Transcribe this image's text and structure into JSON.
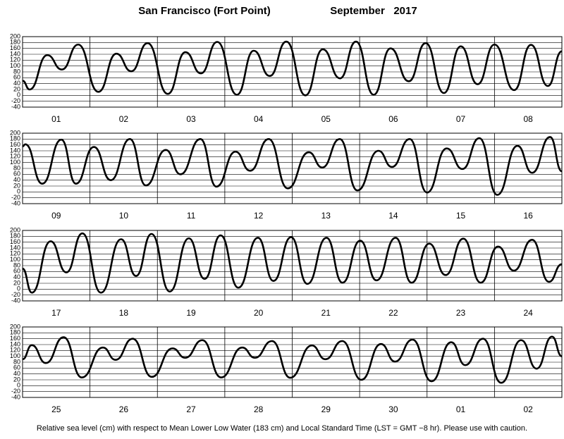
{
  "title": "San Francisco (Fort Point)",
  "period": "September   2017",
  "footnote": "Relative sea level (cm) with respect to Mean Lower Low Water (183 cm) and Local Standard Time (LST = GMT −8 hr). Please use with caution.",
  "chart_data": [
    {
      "type": "line",
      "categories": [
        "01",
        "02",
        "03",
        "04",
        "05",
        "06",
        "07",
        "08"
      ],
      "xlim": [
        0,
        192
      ],
      "ylim": [
        -40,
        200
      ],
      "yticks": [
        -40,
        -20,
        0,
        20,
        40,
        60,
        80,
        100,
        120,
        140,
        160,
        180,
        200
      ],
      "grid": true,
      "x": [
        0,
        2.5,
        8.8,
        14,
        19.8,
        27,
        33.4,
        38.7,
        44.5,
        51.7,
        58,
        63.5,
        69.3,
        76.3,
        82.3,
        88,
        93.9,
        100.7,
        106.9,
        113,
        118.7,
        125,
        131,
        137.5,
        143.5,
        150,
        156,
        162,
        168,
        175,
        181,
        187,
        192
      ],
      "series": [
        {
          "color": "#000000",
          "values": [
            50,
            20,
            137,
            88,
            173,
            12,
            142,
            82,
            178,
            5,
            147,
            75,
            182,
            2,
            152,
            66,
            183,
            0,
            157,
            58,
            183,
            2,
            160,
            48,
            178,
            8,
            167,
            38,
            173,
            18,
            172,
            32,
            150
          ]
        }
      ]
    },
    {
      "type": "line",
      "categories": [
        "09",
        "10",
        "11",
        "12",
        "13",
        "14",
        "15",
        "16"
      ],
      "xlim": [
        0,
        192
      ],
      "ylim": [
        -40,
        200
      ],
      "yticks": [
        -40,
        -20,
        0,
        20,
        40,
        60,
        80,
        100,
        120,
        140,
        160,
        180,
        200
      ],
      "grid": true,
      "x": [
        0,
        1,
        7,
        13.8,
        19,
        25.4,
        31.4,
        38.2,
        43.9,
        51,
        56.2,
        63.3,
        69,
        75.8,
        81,
        87.6,
        94.4,
        101.9,
        106.7,
        112.9,
        119.2,
        126.7,
        131.5,
        137.8,
        144,
        151,
        156.6,
        162.6,
        169,
        176.2,
        181.4,
        187.8,
        192
      ],
      "series": [
        {
          "color": "#000000",
          "values": [
            155,
            162,
            28,
            178,
            28,
            153,
            40,
            180,
            22,
            143,
            60,
            180,
            18,
            137,
            72,
            180,
            12,
            135,
            83,
            180,
            5,
            140,
            85,
            180,
            -2,
            148,
            78,
            183,
            -10,
            157,
            65,
            187,
            70
          ]
        }
      ]
    },
    {
      "type": "line",
      "categories": [
        "17",
        "18",
        "19",
        "20",
        "21",
        "22",
        "23",
        "24"
      ],
      "xlim": [
        0,
        192
      ],
      "ylim": [
        -40,
        200
      ],
      "yticks": [
        -40,
        -20,
        0,
        20,
        40,
        60,
        80,
        100,
        120,
        140,
        160,
        180,
        200
      ],
      "grid": true,
      "x": [
        0,
        3.3,
        10,
        15.6,
        21.3,
        27.9,
        35.1,
        40.4,
        45.9,
        52.4,
        59.2,
        64.8,
        70.5,
        76.8,
        83.8,
        89.3,
        95.6,
        101.4,
        108.2,
        113.9,
        120.2,
        126,
        132.8,
        138.5,
        144.8,
        150.6,
        156.9,
        163.1,
        169.3,
        174.9,
        181.4,
        187.4,
        192
      ],
      "series": [
        {
          "color": "#000000",
          "values": [
            70,
            -12,
            163,
            57,
            190,
            -12,
            170,
            45,
            188,
            -8,
            173,
            35,
            183,
            5,
            175,
            28,
            177,
            18,
            175,
            22,
            165,
            30,
            175,
            22,
            155,
            48,
            172,
            22,
            145,
            63,
            168,
            25,
            85
          ]
        }
      ]
    },
    {
      "type": "line",
      "categories": [
        "25",
        "26",
        "27",
        "28",
        "29",
        "30",
        "01",
        "02"
      ],
      "xlim": [
        0,
        192
      ],
      "ylim": [
        -40,
        200
      ],
      "yticks": [
        -40,
        -20,
        0,
        20,
        40,
        60,
        80,
        100,
        120,
        140,
        160,
        180,
        200
      ],
      "grid": true,
      "x": [
        0,
        3.3,
        8.3,
        14.6,
        21.1,
        28.6,
        33.1,
        39.2,
        46,
        53.4,
        57.9,
        64,
        70.7,
        78.2,
        82.7,
        88.8,
        95.3,
        103,
        107.8,
        113.8,
        120.6,
        127.6,
        132.6,
        138.8,
        145.6,
        152.6,
        157.6,
        163.9,
        170.4,
        177.5,
        183,
        188.5,
        192
      ],
      "series": [
        {
          "color": "#000000",
          "values": [
            90,
            138,
            77,
            165,
            28,
            130,
            88,
            160,
            30,
            127,
            95,
            155,
            28,
            130,
            95,
            152,
            27,
            137,
            90,
            152,
            20,
            142,
            82,
            157,
            15,
            148,
            70,
            160,
            10,
            155,
            58,
            167,
            100
          ]
        }
      ]
    }
  ]
}
